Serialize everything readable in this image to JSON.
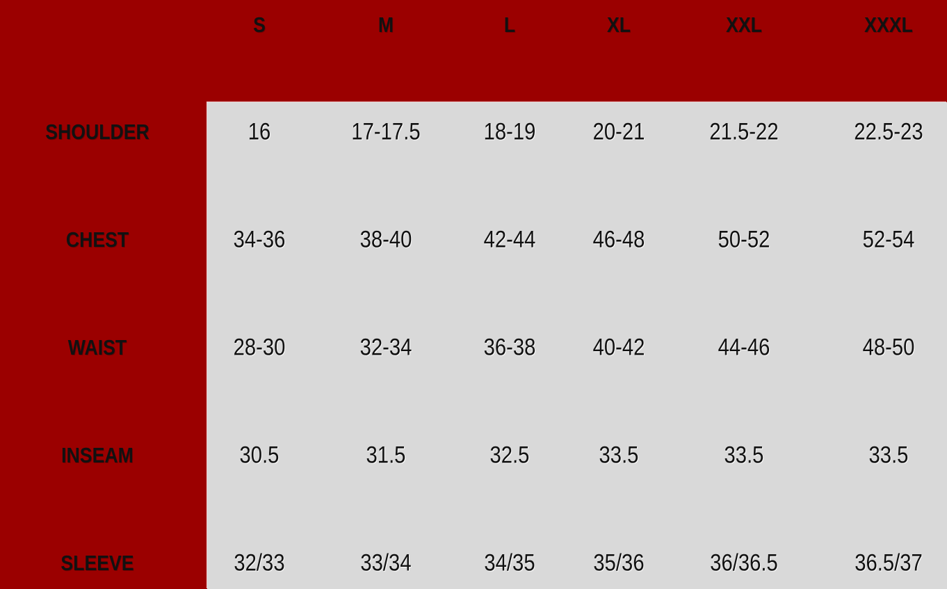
{
  "colors": {
    "background": "#9b0000",
    "panel": "#d9d9d9",
    "text": "#111111"
  },
  "sizes": [
    "S",
    "M",
    "L",
    "XL",
    "XXL",
    "XXXL"
  ],
  "rows": [
    {
      "label": "SHOULDER",
      "values": [
        "16",
        "17-17.5",
        "18-19",
        "20-21",
        "21.5-22",
        "22.5-23"
      ]
    },
    {
      "label": "CHEST",
      "values": [
        "34-36",
        "38-40",
        "42-44",
        "46-48",
        "50-52",
        "52-54"
      ]
    },
    {
      "label": "WAIST",
      "values": [
        "28-30",
        "32-34",
        "36-38",
        "40-42",
        "44-46",
        "48-50"
      ]
    },
    {
      "label": "INSEAM",
      "values": [
        "30.5",
        "31.5",
        "32.5",
        "33.5",
        "33.5",
        "33.5"
      ]
    },
    {
      "label": "SLEEVE",
      "values": [
        "32/33",
        "33/34",
        "34/35",
        "35/36",
        "36/36.5",
        "36.5/37"
      ]
    }
  ]
}
